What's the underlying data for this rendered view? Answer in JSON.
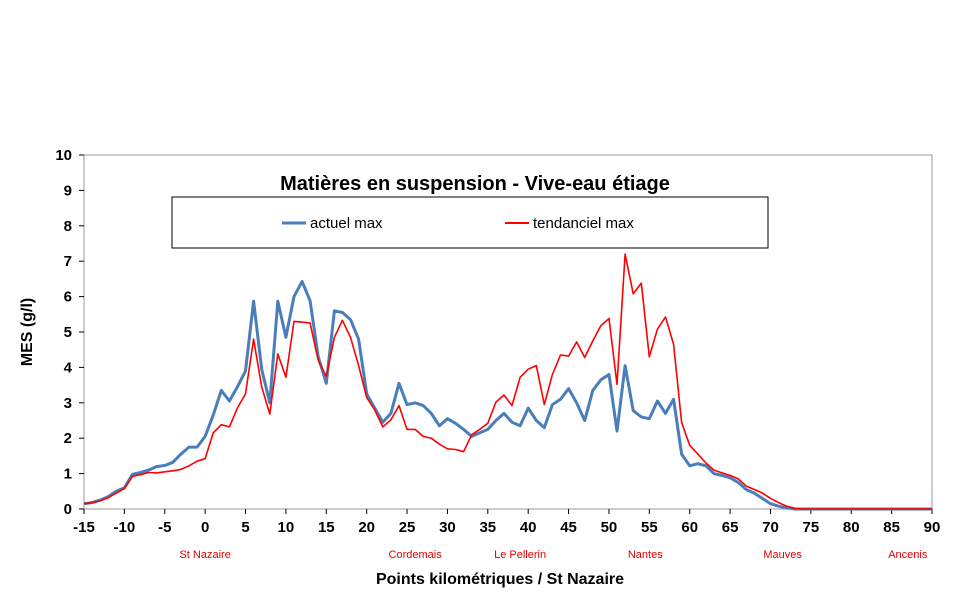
{
  "chart_data": {
    "type": "line",
    "title": "Matières en suspension - Vive-eau étiage",
    "xlabel": "Points kilométriques / St Nazaire",
    "ylabel": "MES (g/l)",
    "xlim": [
      -15,
      90
    ],
    "ylim": [
      0,
      10
    ],
    "xticks": [
      -15,
      -10,
      -5,
      0,
      5,
      10,
      15,
      20,
      25,
      30,
      35,
      40,
      45,
      50,
      55,
      60,
      65,
      70,
      75,
      80,
      85,
      90
    ],
    "yticks": [
      0,
      1,
      2,
      3,
      4,
      5,
      6,
      7,
      8,
      9,
      10
    ],
    "grid": false,
    "legend": "top-left",
    "places": [
      {
        "name": "St Nazaire",
        "km": 0
      },
      {
        "name": "Cordemais",
        "km": 26
      },
      {
        "name": "Le Pellerin",
        "km": 39
      },
      {
        "name": "Nantes",
        "km": 54.5
      },
      {
        "name": "Mauves",
        "km": 71.5
      },
      {
        "name": "Ancenis",
        "km": 87
      }
    ],
    "series": [
      {
        "name": "actuel max",
        "color": "#4a7ebb",
        "points": [
          [
            -15,
            0.15
          ],
          [
            -14,
            0.18
          ],
          [
            -13,
            0.25
          ],
          [
            -12,
            0.35
          ],
          [
            -11,
            0.5
          ],
          [
            -10,
            0.6
          ],
          [
            -9,
            0.98
          ],
          [
            -8,
            1.03
          ],
          [
            -7,
            1.1
          ],
          [
            -6,
            1.2
          ],
          [
            -5,
            1.23
          ],
          [
            -4,
            1.32
          ],
          [
            -3,
            1.55
          ],
          [
            -2,
            1.75
          ],
          [
            -1,
            1.75
          ],
          [
            0,
            2.05
          ],
          [
            1,
            2.65
          ],
          [
            2,
            3.35
          ],
          [
            3,
            3.05
          ],
          [
            4,
            3.45
          ],
          [
            5,
            3.9
          ],
          [
            6,
            5.87
          ],
          [
            7,
            3.95
          ],
          [
            8,
            3.0
          ],
          [
            9,
            5.87
          ],
          [
            10,
            4.85
          ],
          [
            11,
            6.0
          ],
          [
            12,
            6.43
          ],
          [
            13,
            5.88
          ],
          [
            14,
            4.3
          ],
          [
            15,
            3.55
          ],
          [
            16,
            5.6
          ],
          [
            17,
            5.55
          ],
          [
            18,
            5.35
          ],
          [
            19,
            4.8
          ],
          [
            20,
            3.25
          ],
          [
            21,
            2.85
          ],
          [
            22,
            2.45
          ],
          [
            23,
            2.7
          ],
          [
            24,
            3.55
          ],
          [
            25,
            2.95
          ],
          [
            26,
            3.0
          ],
          [
            27,
            2.92
          ],
          [
            28,
            2.7
          ],
          [
            29,
            2.35
          ],
          [
            30,
            2.55
          ],
          [
            31,
            2.42
          ],
          [
            32,
            2.25
          ],
          [
            33,
            2.05
          ],
          [
            34,
            2.15
          ],
          [
            35,
            2.25
          ],
          [
            36,
            2.5
          ],
          [
            37,
            2.7
          ],
          [
            38,
            2.45
          ],
          [
            39,
            2.35
          ],
          [
            40,
            2.85
          ],
          [
            41,
            2.5
          ],
          [
            42,
            2.3
          ],
          [
            43,
            2.95
          ],
          [
            44,
            3.1
          ],
          [
            45,
            3.4
          ],
          [
            46,
            3.0
          ],
          [
            47,
            2.5
          ],
          [
            48,
            3.35
          ],
          [
            49,
            3.65
          ],
          [
            50,
            3.8
          ],
          [
            51,
            2.2
          ],
          [
            52,
            4.05
          ],
          [
            53,
            2.78
          ],
          [
            54,
            2.6
          ],
          [
            55,
            2.55
          ],
          [
            56,
            3.05
          ],
          [
            57,
            2.7
          ],
          [
            58,
            3.1
          ],
          [
            59,
            1.55
          ],
          [
            60,
            1.22
          ],
          [
            61,
            1.28
          ],
          [
            62,
            1.22
          ],
          [
            63,
            1.0
          ],
          [
            64,
            0.95
          ],
          [
            65,
            0.88
          ],
          [
            66,
            0.75
          ],
          [
            67,
            0.55
          ],
          [
            68,
            0.45
          ],
          [
            69,
            0.3
          ],
          [
            70,
            0.15
          ],
          [
            71,
            0.08
          ],
          [
            72,
            0.03
          ],
          [
            73,
            0.0
          ],
          [
            74,
            0.0
          ],
          [
            75,
            0.0
          ],
          [
            80,
            0.0
          ],
          [
            85,
            0.0
          ],
          [
            90,
            0.0
          ]
        ]
      },
      {
        "name": "tendanciel max",
        "color": "#ff0000",
        "points": [
          [
            -15,
            0.15
          ],
          [
            -14,
            0.18
          ],
          [
            -13,
            0.23
          ],
          [
            -12,
            0.32
          ],
          [
            -11,
            0.45
          ],
          [
            -10,
            0.58
          ],
          [
            -9,
            0.92
          ],
          [
            -8,
            0.97
          ],
          [
            -7,
            1.03
          ],
          [
            -6,
            1.02
          ],
          [
            -5,
            1.05
          ],
          [
            -4,
            1.08
          ],
          [
            -3,
            1.12
          ],
          [
            -2,
            1.22
          ],
          [
            -1,
            1.35
          ],
          [
            0,
            1.42
          ],
          [
            1,
            2.15
          ],
          [
            2,
            2.38
          ],
          [
            3,
            2.32
          ],
          [
            4,
            2.85
          ],
          [
            5,
            3.25
          ],
          [
            6,
            4.8
          ],
          [
            7,
            3.45
          ],
          [
            8,
            2.68
          ],
          [
            9,
            4.38
          ],
          [
            10,
            3.72
          ],
          [
            11,
            5.3
          ],
          [
            12,
            5.28
          ],
          [
            13,
            5.25
          ],
          [
            14,
            4.2
          ],
          [
            15,
            3.75
          ],
          [
            16,
            4.85
          ],
          [
            17,
            5.33
          ],
          [
            18,
            4.85
          ],
          [
            19,
            4.05
          ],
          [
            20,
            3.15
          ],
          [
            21,
            2.8
          ],
          [
            22,
            2.32
          ],
          [
            23,
            2.52
          ],
          [
            24,
            2.92
          ],
          [
            25,
            2.25
          ],
          [
            26,
            2.25
          ],
          [
            27,
            2.05
          ],
          [
            28,
            2.0
          ],
          [
            29,
            1.83
          ],
          [
            30,
            1.7
          ],
          [
            31,
            1.68
          ],
          [
            32,
            1.62
          ],
          [
            33,
            2.1
          ],
          [
            34,
            2.25
          ],
          [
            35,
            2.42
          ],
          [
            36,
            3.02
          ],
          [
            37,
            3.22
          ],
          [
            38,
            2.92
          ],
          [
            39,
            3.72
          ],
          [
            40,
            3.95
          ],
          [
            41,
            4.05
          ],
          [
            42,
            2.95
          ],
          [
            43,
            3.8
          ],
          [
            44,
            4.35
          ],
          [
            45,
            4.32
          ],
          [
            46,
            4.72
          ],
          [
            47,
            4.28
          ],
          [
            48,
            4.75
          ],
          [
            49,
            5.18
          ],
          [
            50,
            5.38
          ],
          [
            51,
            3.52
          ],
          [
            52,
            7.2
          ],
          [
            53,
            6.08
          ],
          [
            54,
            6.38
          ],
          [
            55,
            4.3
          ],
          [
            56,
            5.08
          ],
          [
            57,
            5.42
          ],
          [
            58,
            4.65
          ],
          [
            59,
            2.45
          ],
          [
            60,
            1.8
          ],
          [
            61,
            1.55
          ],
          [
            62,
            1.3
          ],
          [
            63,
            1.1
          ],
          [
            64,
            1.02
          ],
          [
            65,
            0.95
          ],
          [
            66,
            0.85
          ],
          [
            67,
            0.65
          ],
          [
            68,
            0.55
          ],
          [
            69,
            0.45
          ],
          [
            70,
            0.3
          ],
          [
            71,
            0.18
          ],
          [
            72,
            0.08
          ],
          [
            73,
            0.02
          ],
          [
            74,
            0.0
          ],
          [
            75,
            0.0
          ],
          [
            80,
            0.0
          ],
          [
            85,
            0.0
          ],
          [
            90,
            0.0
          ]
        ]
      }
    ]
  }
}
